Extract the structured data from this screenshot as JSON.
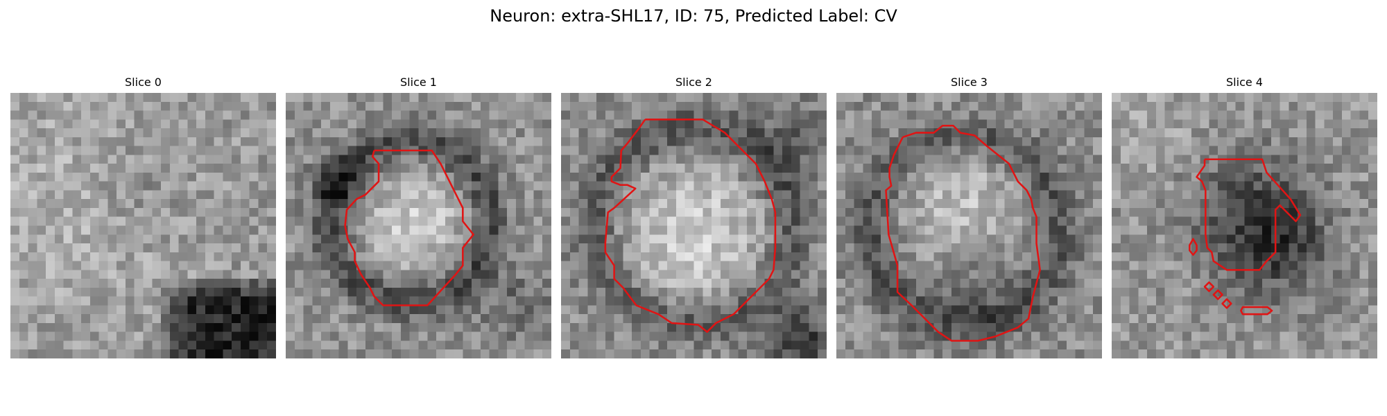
{
  "figure": {
    "title": "Neuron: extra-SHL17, ID: 75, Predicted Label: CV"
  },
  "panels": [
    {
      "title": "Slice 0"
    },
    {
      "title": "Slice 1"
    },
    {
      "title": "Slice 2"
    },
    {
      "title": "Slice 3"
    },
    {
      "title": "Slice 4"
    }
  ],
  "colors": {
    "contour": "#e01414"
  }
}
